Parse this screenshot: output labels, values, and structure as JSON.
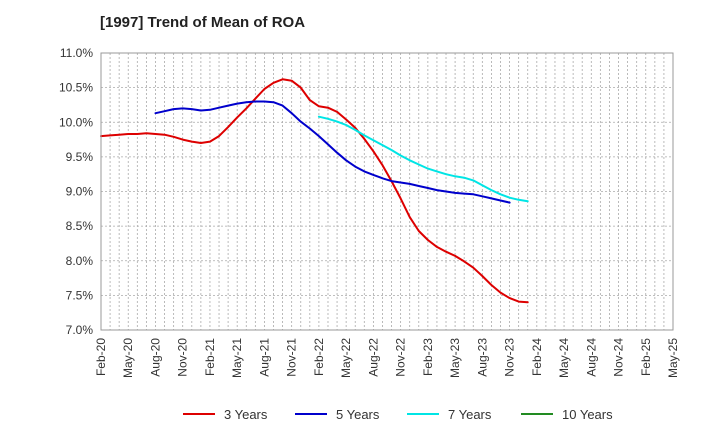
{
  "chart_data": {
    "type": "line",
    "title": "[1997]  Trend of Mean of ROA",
    "xlabel": "",
    "ylabel": "",
    "y_ticks": [
      "7.0%",
      "7.5%",
      "8.0%",
      "8.5%",
      "9.0%",
      "9.5%",
      "10.0%",
      "10.5%",
      "11.0%"
    ],
    "ylim": [
      7.0,
      11.0
    ],
    "x_ticks": [
      "Feb-20",
      "May-20",
      "Aug-20",
      "Nov-20",
      "Feb-21",
      "May-21",
      "Aug-21",
      "Nov-21",
      "Feb-22",
      "May-22",
      "Aug-22",
      "Nov-22",
      "Feb-23",
      "May-23",
      "Aug-23",
      "Nov-23",
      "Feb-24",
      "May-24",
      "Aug-24",
      "Nov-24",
      "Feb-25",
      "May-25"
    ],
    "grid": true,
    "legend_position": "bottom",
    "series": [
      {
        "name": "3 Years",
        "color": "#dd0000",
        "start_index": 0,
        "values": [
          9.8,
          9.81,
          9.82,
          9.83,
          9.83,
          9.84,
          9.83,
          9.82,
          9.79,
          9.75,
          9.72,
          9.7,
          9.72,
          9.8,
          9.93,
          10.07,
          10.2,
          10.34,
          10.48,
          10.57,
          10.62,
          10.6,
          10.5,
          10.32,
          10.23,
          10.21,
          10.15,
          10.04,
          9.92,
          9.76,
          9.58,
          9.38,
          9.15,
          8.9,
          8.63,
          8.43,
          8.3,
          8.2,
          8.13,
          8.07,
          7.99,
          7.9,
          7.78,
          7.65,
          7.54,
          7.46,
          7.41,
          7.4
        ]
      },
      {
        "name": "5 Years",
        "color": "#0000cc",
        "start_index": 6,
        "values": [
          10.13,
          10.16,
          10.19,
          10.2,
          10.19,
          10.17,
          10.18,
          10.21,
          10.24,
          10.27,
          10.29,
          10.3,
          10.3,
          10.29,
          10.24,
          10.13,
          10.01,
          9.91,
          9.8,
          9.68,
          9.56,
          9.45,
          9.36,
          9.29,
          9.24,
          9.19,
          9.15,
          9.13,
          9.11,
          9.08,
          9.05,
          9.02,
          9.0,
          8.98,
          8.97,
          8.96,
          8.93,
          8.9,
          8.87,
          8.84
        ]
      },
      {
        "name": "7 Years",
        "color": "#00e5e5",
        "start_index": 24,
        "values": [
          10.08,
          10.05,
          10.01,
          9.96,
          9.89,
          9.81,
          9.74,
          9.67,
          9.6,
          9.52,
          9.45,
          9.39,
          9.33,
          9.29,
          9.25,
          9.22,
          9.2,
          9.16,
          9.09,
          9.02,
          8.96,
          8.91,
          8.88,
          8.86
        ]
      },
      {
        "name": "10 Years",
        "color": "#228b22",
        "start_index": 0,
        "values": []
      }
    ]
  }
}
